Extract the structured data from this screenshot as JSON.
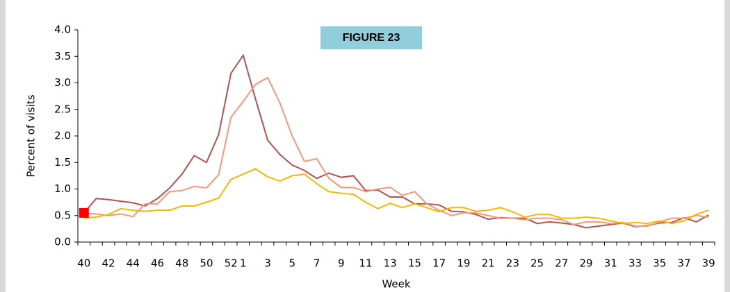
{
  "chart_data": {
    "type": "line",
    "title": "FIGURE 23",
    "x_label": "Week",
    "y_label": "Percent of visits",
    "categories": [
      "40",
      null,
      "42",
      null,
      "44",
      null,
      "46",
      null,
      "48",
      null,
      "50",
      null,
      "52",
      "1",
      null,
      "3",
      null,
      "5",
      null,
      "7",
      null,
      "9",
      null,
      "11",
      null,
      "13",
      null,
      "15",
      null,
      "17",
      null,
      "19",
      null,
      "21",
      null,
      "23",
      null,
      "25",
      null,
      "27",
      null,
      "29",
      null,
      "31",
      null,
      "33",
      null,
      "35",
      null,
      "37",
      null,
      "39"
    ],
    "series": [
      {
        "color": "#b5504f",
        "values": [
          0.55,
          0.82,
          0.8,
          0.77,
          0.74,
          0.68,
          0.82,
          1.02,
          1.28,
          1.63,
          1.5,
          2.03,
          3.18,
          3.52,
          2.7,
          1.92,
          1.65,
          1.45,
          1.35,
          1.2,
          1.3,
          1.22,
          1.25,
          0.97,
          0.98,
          0.85,
          0.85,
          0.72,
          0.72,
          0.7,
          0.58,
          0.57,
          0.52,
          0.43,
          0.46,
          0.45,
          0.45,
          0.35,
          0.38,
          0.36,
          0.33,
          0.27,
          0.3,
          0.33,
          0.36,
          0.29,
          0.31,
          0.36,
          0.37,
          0.46,
          0.38,
          0.51
        ]
      },
      {
        "color": "#f79678",
        "values": [
          0.55,
          0.53,
          0.5,
          0.53,
          0.48,
          0.72,
          0.72,
          0.95,
          0.97,
          1.05,
          1.02,
          1.27,
          2.35,
          2.65,
          2.97,
          3.1,
          2.62,
          2.0,
          1.52,
          1.57,
          1.2,
          1.03,
          1.03,
          0.95,
          1.0,
          1.03,
          0.88,
          0.95,
          0.72,
          0.6,
          0.5,
          0.55,
          0.55,
          0.5,
          0.45,
          0.45,
          0.42,
          0.45,
          0.45,
          0.42,
          0.33,
          0.38,
          0.38,
          0.35,
          0.37,
          0.3,
          0.3,
          0.38,
          0.45,
          0.45,
          0.5,
          0.47
        ]
      },
      {
        "color": "#f5b800",
        "values": [
          0.45,
          0.47,
          0.52,
          0.63,
          0.6,
          0.58,
          0.6,
          0.6,
          0.68,
          0.68,
          0.75,
          0.83,
          1.18,
          1.28,
          1.38,
          1.23,
          1.15,
          1.25,
          1.28,
          1.1,
          0.95,
          0.92,
          0.9,
          0.75,
          0.63,
          0.73,
          0.65,
          0.72,
          0.65,
          0.57,
          0.65,
          0.65,
          0.58,
          0.6,
          0.65,
          0.57,
          0.47,
          0.52,
          0.52,
          0.45,
          0.45,
          0.47,
          0.45,
          0.4,
          0.35,
          0.37,
          0.35,
          0.4,
          0.35,
          0.4,
          0.52,
          0.6
        ]
      }
    ],
    "marker_color": "#ff0000",
    "ylim": [
      0,
      4
    ],
    "yticks": [
      {
        "value": 0,
        "label": "0.0"
      },
      0.5,
      {
        "value": 1,
        "label": "1.0"
      },
      1.5,
      {
        "value": 2,
        "label": "2.0"
      },
      2.5,
      {
        "value": 3,
        "label": "3.0"
      },
      3.5,
      {
        "value": 4,
        "label": "4.0"
      }
    ]
  }
}
